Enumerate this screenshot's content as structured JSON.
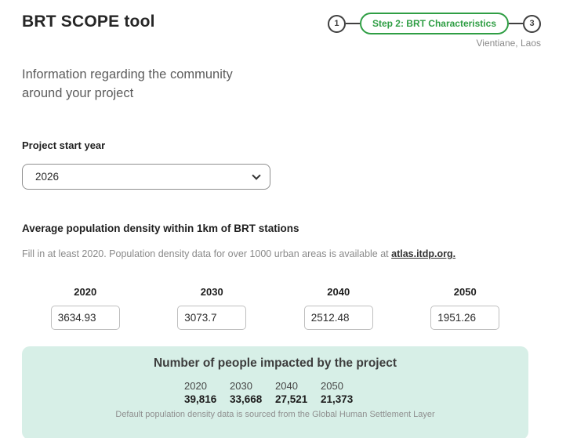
{
  "app": {
    "title": "BRT SCOPE tool",
    "location": "Vientiane, Laos"
  },
  "stepper": {
    "step1": "1",
    "step2_label": "Step 2: BRT Characteristics",
    "step3": "3"
  },
  "intro": "Information regarding the community around your project",
  "project_start_year": {
    "label": "Project start year",
    "value": "2026"
  },
  "density": {
    "heading": "Average population density within 1km of BRT stations",
    "hint_prefix": "Fill in at least 2020. Population density data for over 1000 urban areas is available at ",
    "link_text": "atlas.itdp.org.",
    "columns": [
      {
        "year": "2020",
        "value": "3634.93"
      },
      {
        "year": "2030",
        "value": "3073.7"
      },
      {
        "year": "2040",
        "value": "2512.48"
      },
      {
        "year": "2050",
        "value": "1951.26"
      }
    ]
  },
  "impact": {
    "title": "Number of people impacted by the project",
    "years": [
      "2020",
      "2030",
      "2040",
      "2050"
    ],
    "values": [
      "39,816",
      "33,668",
      "27,521",
      "21,373"
    ],
    "footnote": "Default population density data is sourced from the Global Human Settlement Layer"
  },
  "icons": {
    "select_chevron": "chevron-down-icon"
  },
  "colors": {
    "accent_green": "#2f9e44",
    "panel_bg": "#d7efe7",
    "step_outline": "#3f3f3f"
  }
}
